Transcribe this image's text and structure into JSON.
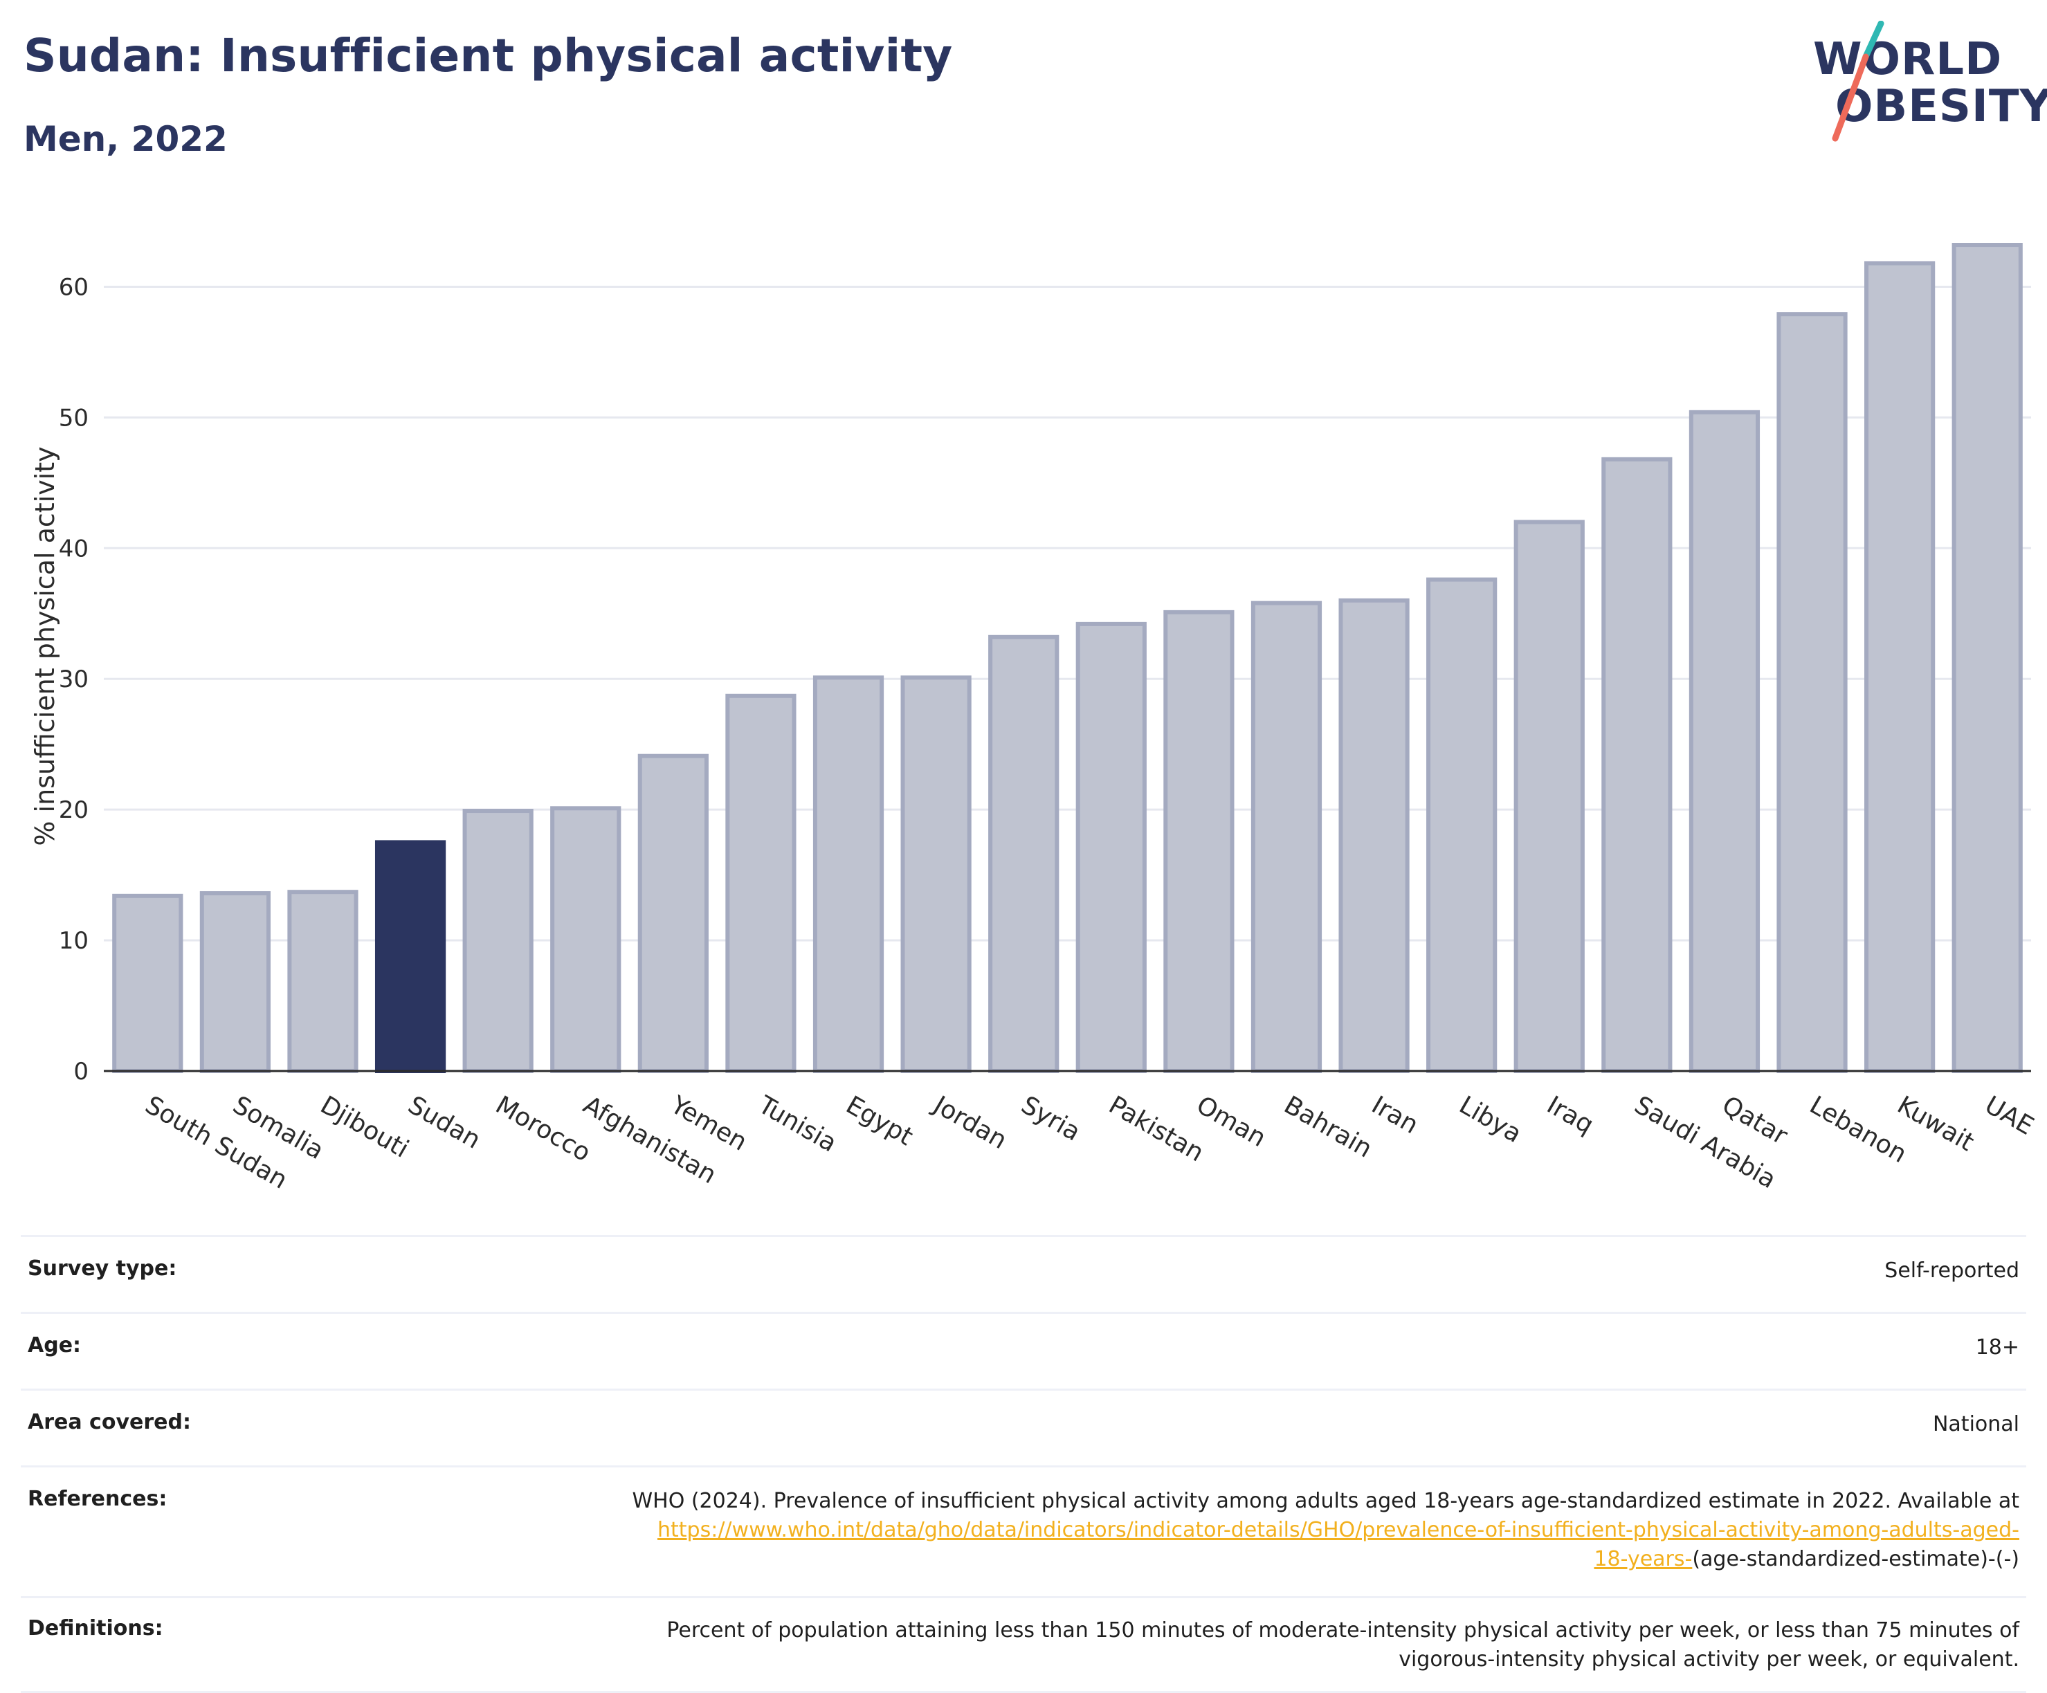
{
  "header": {
    "title": "Sudan: Insufficient physical activity",
    "subtitle": "Men, 2022"
  },
  "logo": {
    "line1": "WORLD",
    "line2": "OBESITY",
    "colors": {
      "text": "#2b3560",
      "slash_top": "#2fb8b3",
      "slash_bottom": "#ee6a5a"
    }
  },
  "chart_data": {
    "type": "bar",
    "ylabel": "% insufficient physical activity",
    "ylim": [
      0,
      65
    ],
    "yticks": [
      0,
      10,
      20,
      30,
      40,
      50,
      60
    ],
    "grid": true,
    "categories": [
      "South Sudan",
      "Somalia",
      "Djibouti",
      "Sudan",
      "Morocco",
      "Afghanistan",
      "Yemen",
      "Tunisia",
      "Egypt",
      "Jordan",
      "Syria",
      "Pakistan",
      "Oman",
      "Bahrain",
      "Iran",
      "Libya",
      "Iraq",
      "Saudi Arabia",
      "Qatar",
      "Lebanon",
      "Kuwait",
      "UAE"
    ],
    "values": [
      13.4,
      13.6,
      13.7,
      17.5,
      19.9,
      20.1,
      24.1,
      28.7,
      30.1,
      30.1,
      33.2,
      34.2,
      35.1,
      35.8,
      36.0,
      37.6,
      42.0,
      46.8,
      50.4,
      57.9,
      61.8,
      63.2
    ],
    "highlight": "Sudan",
    "colors": {
      "bar": "#bfc3d0",
      "bar_border": "#a4aac0",
      "highlight": "#2b3560"
    }
  },
  "info": {
    "survey_type_label": "Survey type:",
    "survey_type_value": "Self-reported",
    "age_label": "Age:",
    "age_value": "18+",
    "area_label": "Area covered:",
    "area_value": "National",
    "references_label": "References:",
    "references_text": "WHO (2024). Prevalence of insufficient physical activity among adults aged 18-years age-standardized estimate in 2022. Available at",
    "references_link_1": "https://www.who.int/data/gho/data/indicators/indicator-details/GHO/prevalence-of-insufficient-physical-activity-among-adults-aged-",
    "references_link_2": "18-years-",
    "references_suffix": "(age-standardized-estimate)-(-)",
    "definitions_label": "Definitions:",
    "definitions_line1": "Percent of population attaining less than 150 minutes of moderate-intensity physical activity per week, or less than 75 minutes of",
    "definitions_line2": "vigorous-intensity physical activity per week, or equivalent."
  }
}
